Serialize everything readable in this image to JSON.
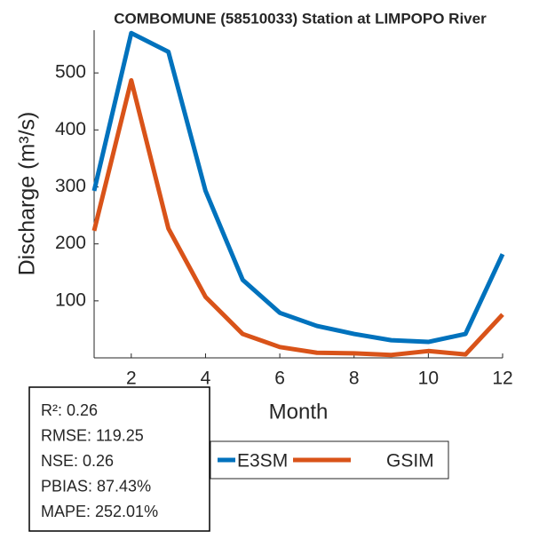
{
  "chart_data": {
    "type": "line",
    "title": "COMBOMUNE (58510033)  Station at  LIMPOPO  River",
    "x_label": "Month",
    "y_label": "Discharge (m³/s)",
    "x": [
      1,
      2,
      3,
      4,
      5,
      6,
      7,
      8,
      9,
      10,
      11,
      12
    ],
    "series": [
      {
        "name": "E3SM",
        "color": "#0072bd",
        "values": [
          293,
          570,
          537,
          293,
          137,
          79,
          56,
          42,
          31,
          28,
          42,
          182
        ]
      },
      {
        "name": "GSIM",
        "color": "#d95319",
        "values": [
          223,
          487,
          227,
          107,
          42,
          19,
          9,
          8,
          5,
          12,
          6,
          76
        ]
      }
    ],
    "xlim": [
      1,
      12
    ],
    "xticks": [
      2,
      4,
      6,
      8,
      10,
      12
    ],
    "ylim": [
      0,
      575
    ],
    "yticks": [
      100,
      200,
      300,
      400,
      500
    ],
    "stats": [
      "R²: 0.26",
      "RMSE: 119.25",
      "NSE: 0.26",
      "PBIAS: 87.43%",
      "MAPE: 252.01%"
    ]
  }
}
